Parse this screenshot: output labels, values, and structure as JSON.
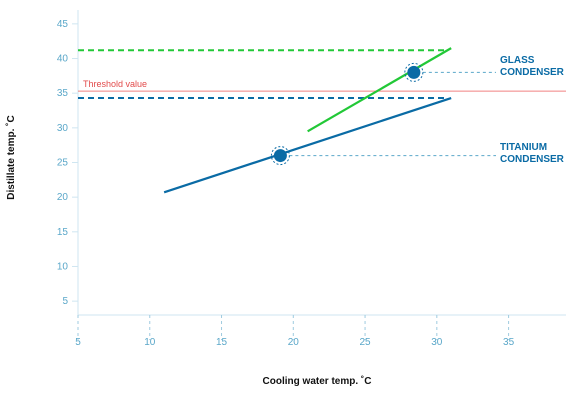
{
  "chart_data": {
    "type": "line",
    "xlabel": "Cooling water temp. ˚C",
    "ylabel": "Distillate temp. ˚C",
    "xlim": [
      5,
      39
    ],
    "ylim": [
      3,
      47
    ],
    "x_ticks": [
      5,
      10,
      15,
      20,
      25,
      30,
      35
    ],
    "y_ticks": [
      5,
      10,
      15,
      20,
      25,
      30,
      35,
      40,
      45
    ],
    "series": [
      {
        "name_lines": [
          "GLASS",
          "CONDENSER"
        ],
        "color": "#22c837",
        "points": [
          [
            21,
            29.5
          ],
          [
            31,
            41.5
          ]
        ],
        "marker": [
          28.4,
          38
        ],
        "reference_level": 41.2
      },
      {
        "name_lines": [
          "TITANIUM",
          "CONDENSER"
        ],
        "color": "#0a6ba5",
        "points": [
          [
            11,
            20.7
          ],
          [
            31,
            34.3
          ]
        ],
        "marker": [
          19.1,
          26
        ],
        "reference_level": 34.3
      }
    ],
    "threshold": {
      "label": "Threshold value",
      "value": 35.3,
      "color": "#f08080"
    },
    "grid": "dashed x-axis ticks only"
  }
}
